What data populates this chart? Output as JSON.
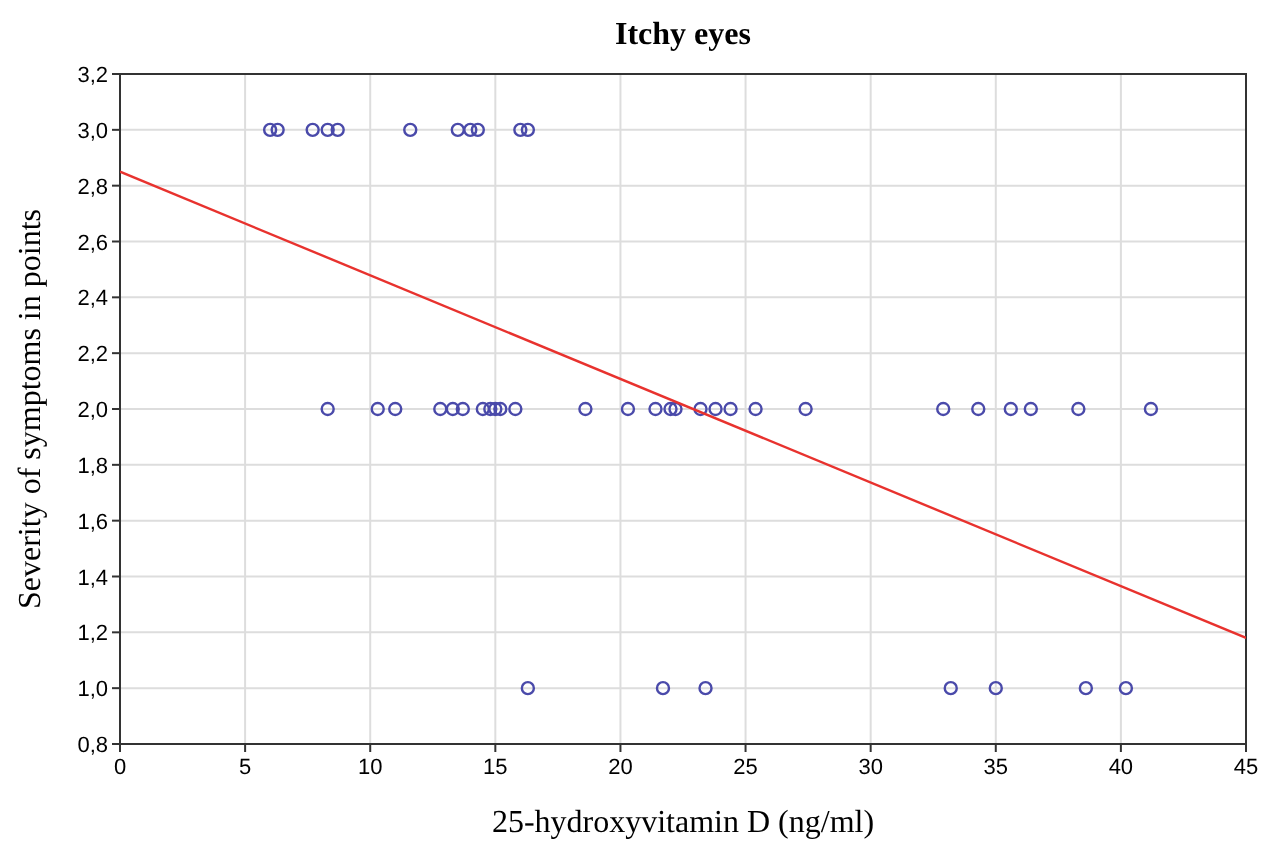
{
  "chart_data": {
    "type": "scatter",
    "title": "Itchy eyes",
    "xlabel": "25-hydroxyvitamin D (ng/ml)",
    "ylabel": "Severity of symptoms in points",
    "xlim": [
      0,
      45
    ],
    "xticks": [
      0,
      5,
      10,
      15,
      20,
      25,
      30,
      35,
      40,
      45
    ],
    "ylim": [
      0.8,
      3.2
    ],
    "yticks": [
      {
        "value": 0.8,
        "label": "0,8"
      },
      {
        "value": 1.0,
        "label": "1,0"
      },
      {
        "value": 1.2,
        "label": "1,2"
      },
      {
        "value": 1.4,
        "label": "1,4"
      },
      {
        "value": 1.6,
        "label": "1,6"
      },
      {
        "value": 1.8,
        "label": "1,8"
      },
      {
        "value": 2.0,
        "label": "2,0"
      },
      {
        "value": 2.2,
        "label": "2,2"
      },
      {
        "value": 2.4,
        "label": "2,4"
      },
      {
        "value": 2.6,
        "label": "2,6"
      },
      {
        "value": 2.8,
        "label": "2,8"
      },
      {
        "value": 3.0,
        "label": "3,0"
      },
      {
        "value": 3.2,
        "label": "3,2"
      }
    ],
    "grid": true,
    "series": [
      {
        "color": "#4a4aaa",
        "marker": "circle",
        "x": [
          6.0,
          6.3,
          7.7,
          8.3,
          8.7,
          11.6,
          13.5,
          14.0,
          14.3,
          16.0,
          16.3,
          8.3,
          10.3,
          11.0,
          12.8,
          13.3,
          13.7,
          14.5,
          14.8,
          15.0,
          15.2,
          15.8,
          18.6,
          20.3,
          21.4,
          22.0,
          22.2,
          23.2,
          23.8,
          24.4,
          25.4,
          27.4,
          32.9,
          34.3,
          35.6,
          36.4,
          38.3,
          41.2,
          16.3,
          21.7,
          23.4,
          33.2,
          35.0,
          38.6,
          40.2
        ],
        "values": [
          3,
          3,
          3,
          3,
          3,
          3,
          3,
          3,
          3,
          3,
          3,
          2,
          2,
          2,
          2,
          2,
          2,
          2,
          2,
          2,
          2,
          2,
          2,
          2,
          2,
          2,
          2,
          2,
          2,
          2,
          2,
          2,
          2,
          2,
          2,
          2,
          2,
          2,
          1,
          1,
          1,
          1,
          1,
          1,
          1
        ]
      },
      {
        "type": "line",
        "color": "#e8322e",
        "marker": "none",
        "x": [
          0,
          45
        ],
        "values": [
          2.85,
          1.18
        ]
      }
    ]
  }
}
